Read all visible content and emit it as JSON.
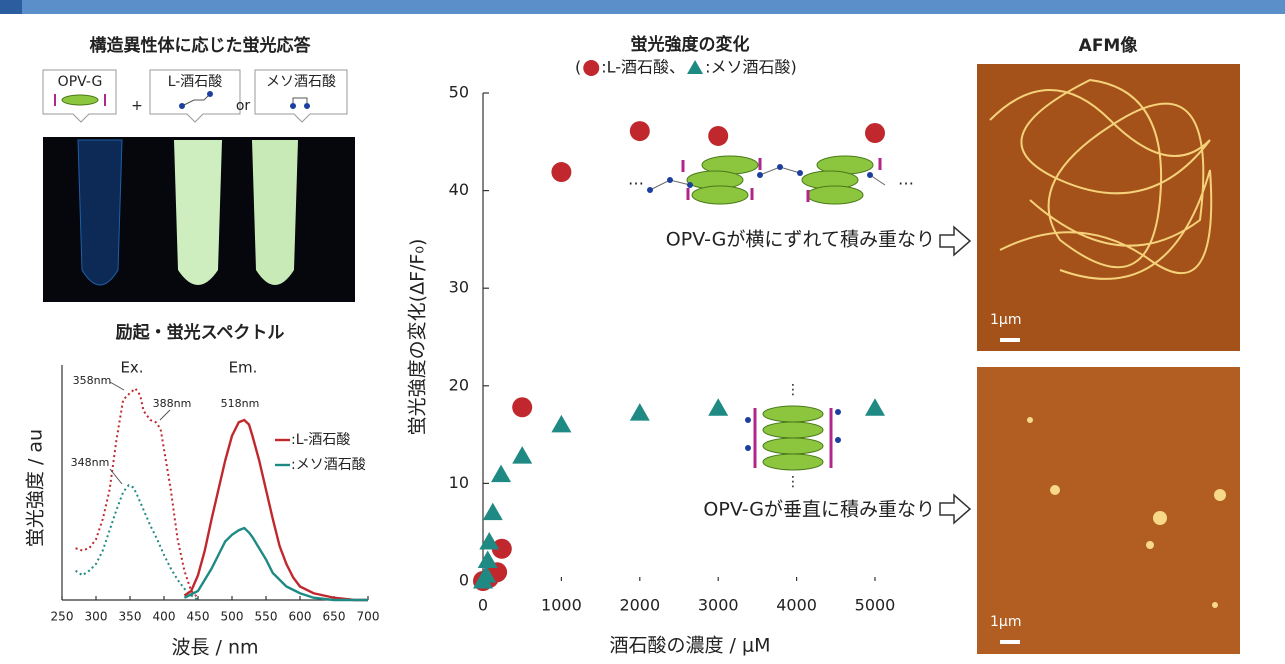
{
  "left": {
    "title": "構造異性体に応じた蛍光応答",
    "callouts": [
      "OPV-G",
      "L-酒石酸",
      "メソ酒石酸"
    ],
    "plus": "+",
    "or": "or",
    "spectrum_title": "励起・蛍光スペクトル"
  },
  "afm": {
    "title": "AFM像",
    "scale_labels": [
      "1μm",
      "1μm"
    ]
  },
  "chart_data": [
    {
      "type": "scatter",
      "title": "蛍光強度の変化",
      "subtitle": [
        "(",
        ":L-酒石酸、",
        ":メソ酒石酸)"
      ],
      "x_label": "酒石酸の濃度 / μM",
      "y_label": "蛍光強度の変化(ΔF/F₀)",
      "xlim": [
        0,
        5000
      ],
      "ylim": [
        0,
        50
      ],
      "xticks": [
        0,
        1000,
        2000,
        3000,
        4000,
        5000
      ],
      "yticks": [
        0,
        10,
        20,
        30,
        40,
        50
      ],
      "annotations": [
        "OPV-Gが横にずれて積み重なり",
        "OPV-Gが垂直に積み重なり"
      ],
      "series": [
        {
          "marker": "circle",
          "color": "#c0282d",
          "x": [
            0,
            75,
            180,
            240,
            500,
            1000,
            2000,
            3000,
            5000
          ],
          "values": [
            0,
            0.3,
            0.9,
            3.3,
            17.8,
            41.9,
            46.1,
            45.6,
            45.9
          ]
        },
        {
          "marker": "triangle",
          "color": "#1f8a84",
          "x": [
            0,
            40,
            60,
            80,
            125,
            230,
            500,
            1000,
            2000,
            3000,
            5000
          ],
          "values": [
            0,
            0.6,
            2.1,
            4,
            7,
            10.9,
            12.8,
            16,
            17.2,
            17.7,
            17.7
          ]
        }
      ]
    },
    {
      "type": "line",
      "x_label": "波長 / nm",
      "y_label": "蛍光強度 / au",
      "xlim": [
        250,
        700
      ],
      "ylim": [
        0,
        100
      ],
      "xticks": [
        250,
        300,
        350,
        400,
        450,
        500,
        550,
        600,
        650,
        700
      ],
      "annotations": [
        "Ex.",
        "Em.",
        "358nm",
        "388nm",
        "518nm",
        "348nm"
      ],
      "series": [
        {
          "color": "#c0282d",
          "dash": "dotted",
          "x": [
            270,
            280,
            290,
            300,
            310,
            320,
            330,
            340,
            350,
            358,
            365,
            370,
            380,
            388,
            395,
            400,
            410,
            420,
            430,
            440,
            450
          ],
          "values": [
            23,
            22,
            23,
            27,
            36,
            49,
            71,
            89,
            92,
            94,
            91,
            84,
            80,
            79,
            76,
            67,
            49,
            27,
            13,
            4,
            1
          ]
        },
        {
          "color": "#1f8a84",
          "dash": "dotted",
          "x": [
            270,
            280,
            290,
            300,
            310,
            320,
            330,
            340,
            348,
            355,
            360,
            370,
            380,
            390,
            400,
            410,
            420,
            430,
            440,
            450
          ],
          "values": [
            13,
            11,
            13,
            16,
            22,
            31,
            40,
            48,
            51,
            50,
            47,
            40,
            33,
            27,
            20,
            14,
            9,
            5,
            2,
            0
          ]
        },
        {
          "name": ":L-酒石酸",
          "color": "#c0282d",
          "dash": "solid",
          "x": [
            430,
            440,
            450,
            460,
            470,
            480,
            490,
            500,
            510,
            518,
            525,
            530,
            540,
            550,
            560,
            570,
            580,
            590,
            600,
            620,
            650,
            680,
            700
          ],
          "values": [
            2,
            4,
            11,
            22,
            36,
            49,
            62,
            73,
            79,
            80,
            78,
            73,
            62,
            49,
            36,
            24,
            16,
            10,
            6,
            3,
            1,
            0,
            0
          ]
        },
        {
          "name": ":メソ酒石酸",
          "color": "#1f8a84",
          "dash": "solid",
          "x": [
            430,
            450,
            460,
            470,
            480,
            490,
            500,
            510,
            518,
            525,
            530,
            540,
            550,
            560,
            570,
            580,
            600,
            620,
            650,
            700
          ],
          "values": [
            1,
            4,
            9,
            14,
            20,
            26,
            29,
            31,
            32,
            30,
            28,
            23,
            18,
            12,
            9,
            6,
            3,
            1,
            0,
            0
          ]
        }
      ]
    }
  ]
}
